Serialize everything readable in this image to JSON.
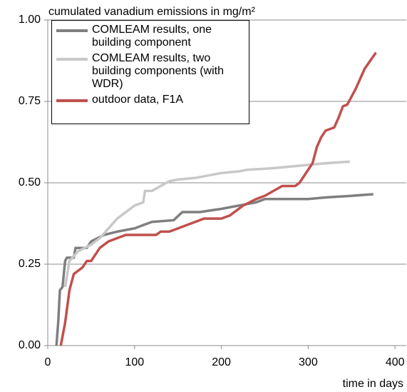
{
  "chart_data": {
    "type": "line",
    "title": "cumulated vanadium emissions in mg/m²",
    "x_label": "time in days",
    "xlim": [
      0,
      413
    ],
    "xticks": [
      0,
      100,
      200,
      300,
      400
    ],
    "ylim": [
      0,
      1
    ],
    "yticks": [
      {
        "value": 0,
        "label": "0.00"
      },
      {
        "value": 0.25,
        "label": "0.25"
      },
      {
        "value": 0.5,
        "label": "0.50"
      },
      {
        "value": 0.75,
        "label": "0.75"
      },
      {
        "value": 1,
        "label": "1.00"
      }
    ],
    "grid": true,
    "legend": "upper left",
    "series": [
      {
        "name": "COMLEAM results, one building component",
        "color": "#7f7f7f",
        "x": [
          10,
          12,
          14,
          17,
          20,
          22,
          30,
          32,
          45,
          50,
          65,
          80,
          100,
          110,
          120,
          145,
          155,
          175,
          200,
          220,
          240,
          250,
          300,
          320,
          350,
          375
        ],
        "values": [
          0,
          0.07,
          0.17,
          0.18,
          0.26,
          0.27,
          0.27,
          0.3,
          0.3,
          0.32,
          0.34,
          0.35,
          0.36,
          0.37,
          0.38,
          0.385,
          0.41,
          0.41,
          0.42,
          0.43,
          0.44,
          0.45,
          0.45,
          0.455,
          0.46,
          0.465
        ]
      },
      {
        "name": "COMLEAM results, two building components (with WDR)",
        "color": "#c8c8c8",
        "x": [
          20,
          25,
          35,
          50,
          60,
          70,
          80,
          100,
          110,
          112,
          120,
          130,
          140,
          150,
          170,
          200,
          220,
          230,
          260,
          280,
          300,
          320,
          348
        ],
        "values": [
          0.18,
          0.26,
          0.29,
          0.31,
          0.33,
          0.36,
          0.39,
          0.43,
          0.44,
          0.475,
          0.475,
          0.49,
          0.505,
          0.51,
          0.515,
          0.53,
          0.535,
          0.54,
          0.545,
          0.55,
          0.555,
          0.56,
          0.565
        ]
      },
      {
        "name": "outdoor data, F1A",
        "color": "#c0504d",
        "x": [
          15,
          20,
          25,
          30,
          35,
          40,
          45,
          50,
          55,
          60,
          70,
          80,
          90,
          100,
          125,
          130,
          140,
          150,
          160,
          170,
          180,
          200,
          210,
          225,
          240,
          250,
          260,
          270,
          285,
          290,
          300,
          305,
          310,
          315,
          320,
          330,
          335,
          340,
          345,
          355,
          365,
          378
        ],
        "values": [
          0,
          0.07,
          0.17,
          0.22,
          0.23,
          0.24,
          0.26,
          0.26,
          0.28,
          0.3,
          0.32,
          0.33,
          0.34,
          0.34,
          0.34,
          0.35,
          0.35,
          0.36,
          0.37,
          0.38,
          0.39,
          0.39,
          0.4,
          0.43,
          0.45,
          0.46,
          0.475,
          0.49,
          0.49,
          0.5,
          0.54,
          0.56,
          0.61,
          0.64,
          0.66,
          0.67,
          0.7,
          0.735,
          0.74,
          0.79,
          0.85,
          0.9
        ]
      }
    ]
  }
}
